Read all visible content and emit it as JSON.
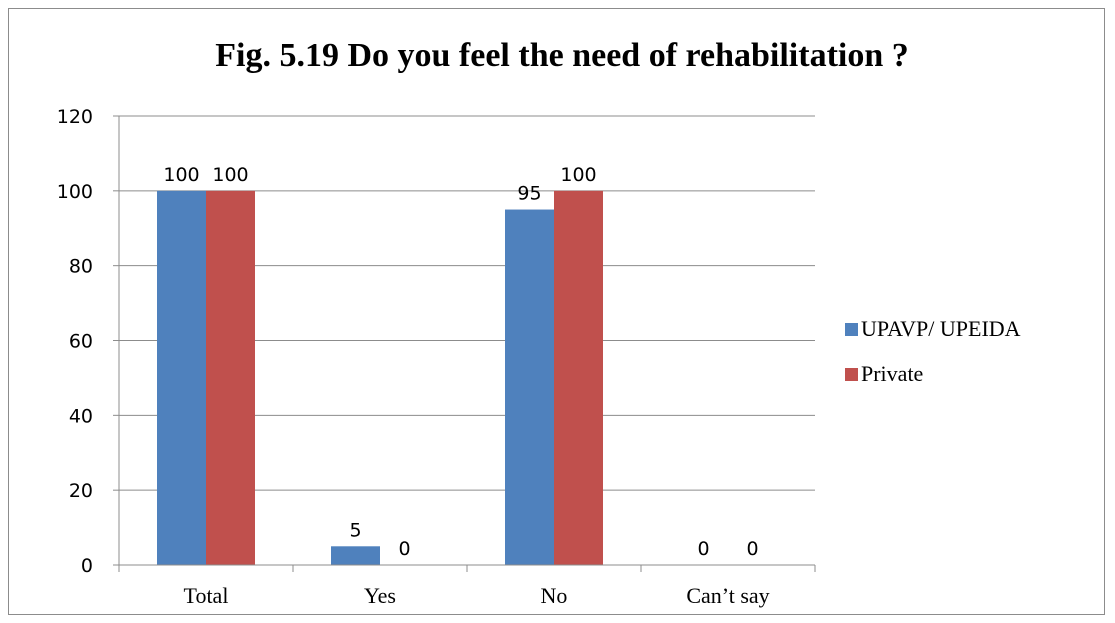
{
  "chart_data": {
    "type": "bar",
    "title": "Fig. 5.19 Do you feel the need of rehabilitation ?",
    "categories": [
      "Total",
      "Yes",
      "No",
      "Can’t say"
    ],
    "series": [
      {
        "name": "UPAVP/ UPEIDA",
        "values": [
          100,
          5,
          95,
          0
        ],
        "color": "#4f81bd"
      },
      {
        "name": "Private",
        "values": [
          100,
          0,
          100,
          0
        ],
        "color": "#c0504d"
      }
    ],
    "ylim": [
      0,
      120
    ],
    "yticks": [
      0,
      20,
      40,
      60,
      80,
      100,
      120
    ],
    "grid": true,
    "legend": "right"
  }
}
